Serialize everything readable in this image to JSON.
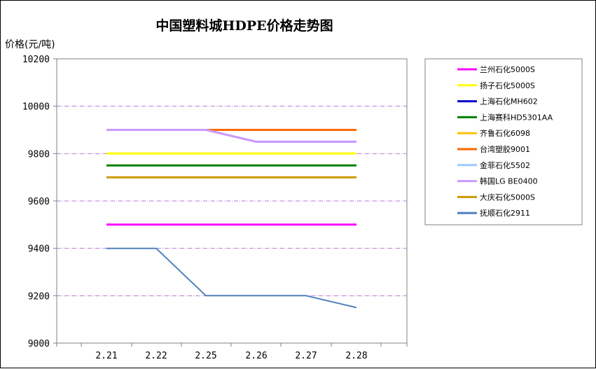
{
  "chart_data": {
    "type": "line",
    "title": "中国塑料城HDPE价格走势图",
    "ylabel": "价格(元/吨)",
    "xlabel": "",
    "categories": [
      "2.21",
      "2.22",
      "2.25",
      "2.26",
      "2.27",
      "2.28"
    ],
    "ylim": [
      9000,
      10200
    ],
    "yticks": [
      9000,
      9200,
      9400,
      9600,
      9800,
      10000,
      10200
    ],
    "grid": true,
    "legend_position": "right",
    "series": [
      {
        "name": "兰州石化5000S",
        "color": "#ff00ff",
        "values": [
          9500,
          9500,
          9500,
          9500,
          9500,
          9500
        ]
      },
      {
        "name": "扬子石化5000S",
        "color": "#ffff00",
        "values": [
          9800,
          9800,
          9800,
          9800,
          9800,
          9800
        ]
      },
      {
        "name": "上海石化MH602",
        "color": "#0000cc",
        "values": [
          9900,
          9900,
          9900,
          9900,
          9900,
          9900
        ]
      },
      {
        "name": "上海赛科HD5301AA",
        "color": "#008000",
        "values": [
          9750,
          9750,
          9750,
          9750,
          9750,
          9750
        ]
      },
      {
        "name": "齐鲁石化6098",
        "color": "#ffc000",
        "values": [
          9900,
          9900,
          9900,
          9900,
          9900,
          9900
        ]
      },
      {
        "name": "台湾塑胶9001",
        "color": "#ff6600",
        "values": [
          9900,
          9900,
          9900,
          9900,
          9900,
          9900
        ]
      },
      {
        "name": "金菲石化5502",
        "color": "#99ccff",
        "values": [
          9900,
          9900,
          9900,
          9850,
          9850,
          9850
        ]
      },
      {
        "name": "韩国LG BE0400",
        "color": "#cc99ff",
        "values": [
          9900,
          9900,
          9900,
          9850,
          9850,
          9850
        ]
      },
      {
        "name": "大庆石化5000S",
        "color": "#cc9900",
        "values": [
          9700,
          9700,
          9700,
          9700,
          9700,
          9700
        ]
      },
      {
        "name": "抚顺石化2911",
        "color": "#4f81bd",
        "values": [
          9400,
          9400,
          9200,
          9200,
          9200,
          9150
        ]
      }
    ]
  }
}
